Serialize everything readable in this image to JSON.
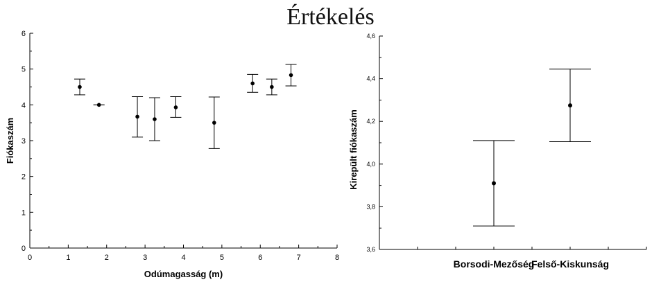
{
  "title": "Értékelés",
  "chart_data": [
    {
      "type": "scatter",
      "title": "",
      "xlabel": "Odúmagasság (m)",
      "ylabel": "Fiókaszám",
      "xlim": [
        0,
        8
      ],
      "ylim": [
        0,
        6
      ],
      "x_ticks": [
        "0",
        "1",
        "2",
        "3",
        "4",
        "5",
        "6",
        "7",
        "8"
      ],
      "y_ticks": [
        "0",
        "1",
        "2",
        "3",
        "4",
        "5",
        "6"
      ],
      "grid": false,
      "points": [
        {
          "x": 1.3,
          "y": 4.5,
          "low": 4.28,
          "high": 4.72
        },
        {
          "x": 1.8,
          "y": 4.0,
          "low": 4.0,
          "high": 4.0
        },
        {
          "x": 2.8,
          "y": 3.67,
          "low": 3.1,
          "high": 4.23
        },
        {
          "x": 3.25,
          "y": 3.6,
          "low": 3.0,
          "high": 4.2
        },
        {
          "x": 3.8,
          "y": 3.93,
          "low": 3.65,
          "high": 4.23
        },
        {
          "x": 4.8,
          "y": 3.5,
          "low": 2.78,
          "high": 4.22
        },
        {
          "x": 5.8,
          "y": 4.6,
          "low": 4.35,
          "high": 4.85
        },
        {
          "x": 6.3,
          "y": 4.5,
          "low": 4.28,
          "high": 4.72
        },
        {
          "x": 6.8,
          "y": 4.83,
          "low": 4.53,
          "high": 5.13
        }
      ]
    },
    {
      "type": "scatter",
      "title": "",
      "xlabel": "",
      "ylabel": "Kirepült fiókaszám",
      "ylim": [
        3.6,
        4.6
      ],
      "y_ticks": [
        "3,6",
        "3,8",
        "4,0",
        "4,2",
        "4,4",
        "4,6"
      ],
      "categories": [
        "Borsodi-Mezőség",
        "Felső-Kiskunság"
      ],
      "grid": false,
      "points": [
        {
          "category": "Borsodi-Mezőség",
          "y": 3.91,
          "low": 3.71,
          "high": 4.11
        },
        {
          "category": "Felső-Kiskunság",
          "y": 4.275,
          "low": 4.105,
          "high": 4.445
        }
      ]
    }
  ]
}
